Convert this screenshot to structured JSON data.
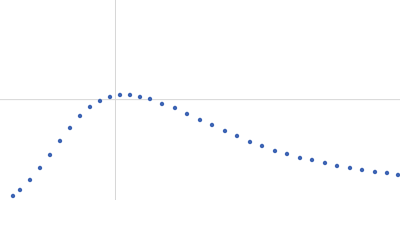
{
  "chart_data": {
    "type": "scatter",
    "color": "#3b63b3",
    "x": [
      0.195,
      0.3,
      0.45,
      0.6,
      0.75,
      0.9,
      1.05,
      1.2,
      1.35,
      1.5,
      1.65,
      1.8,
      1.95,
      2.1,
      2.25,
      2.43,
      2.625,
      2.805,
      3.0,
      3.18,
      3.375,
      3.555,
      3.75,
      3.93,
      4.125,
      4.305,
      4.5,
      4.68,
      4.875,
      5.055,
      5.25,
      5.43,
      5.625,
      5.805,
      5.97
    ],
    "values": [
      0.044,
      0.11,
      0.22,
      0.352,
      0.495,
      0.649,
      0.792,
      0.924,
      1.023,
      1.089,
      1.133,
      1.155,
      1.155,
      1.133,
      1.111,
      1.056,
      1.012,
      0.946,
      0.88,
      0.825,
      0.759,
      0.704,
      0.638,
      0.594,
      0.539,
      0.506,
      0.462,
      0.44,
      0.407,
      0.374,
      0.352,
      0.33,
      0.308,
      0.297,
      0.275
    ],
    "xlim": [
      0,
      6
    ],
    "ylim": [
      0,
      2.2
    ],
    "grid_x": [
      1.732
    ],
    "grid_y": [
      1.104
    ]
  }
}
